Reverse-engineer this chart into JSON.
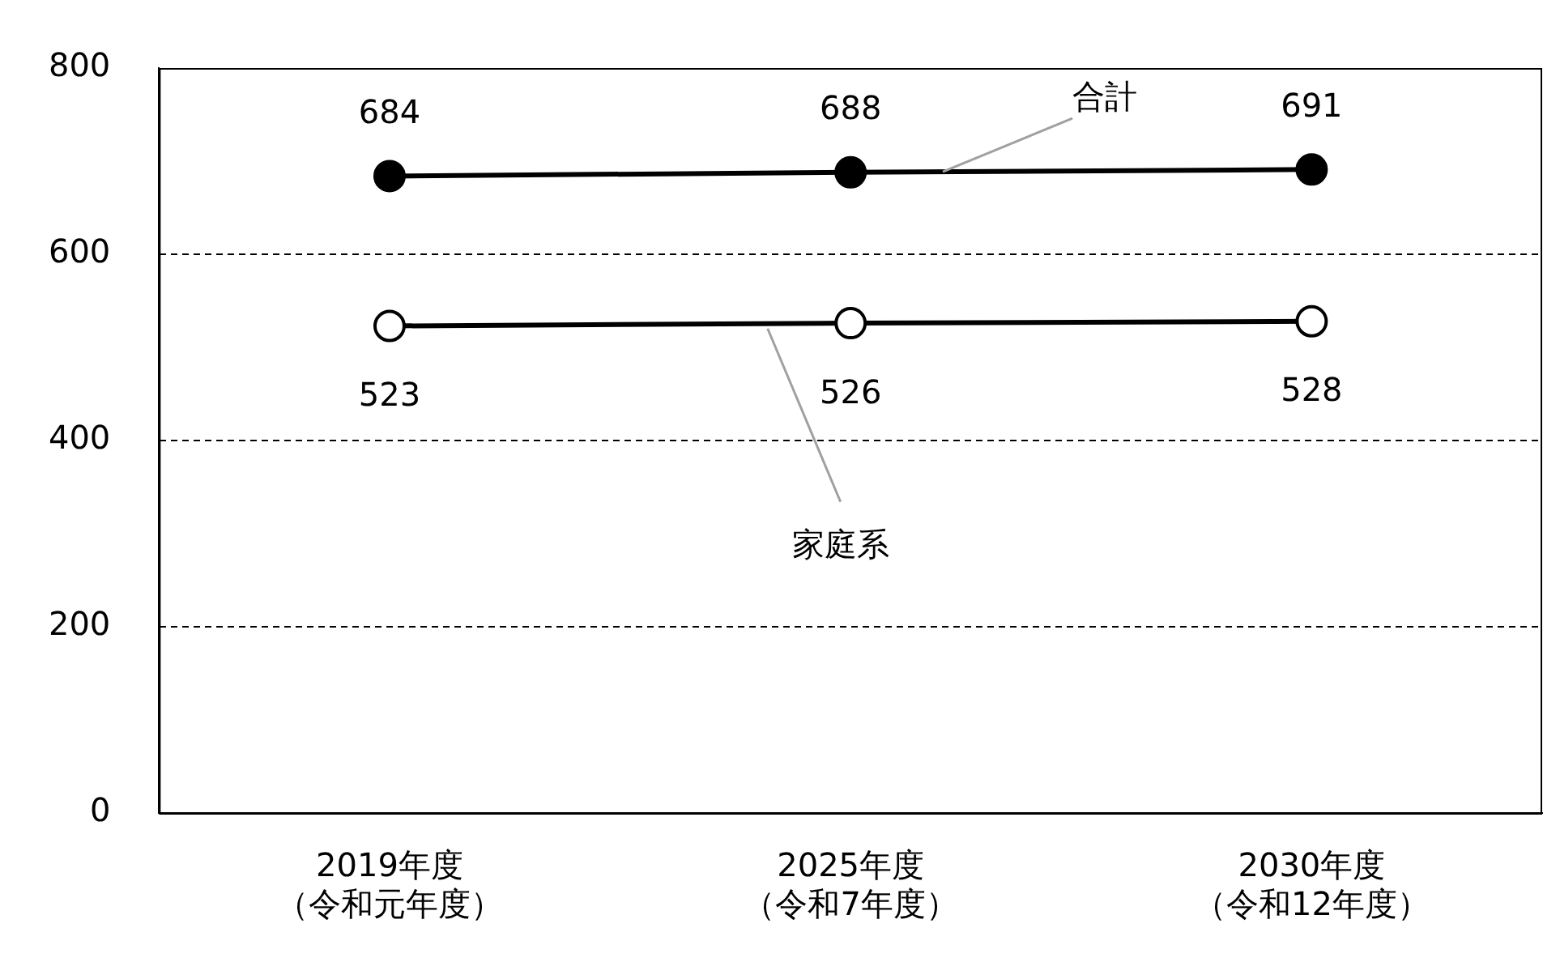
{
  "chart_data": {
    "type": "line",
    "categories": [
      "2019年度（令和元年度）",
      "2025年度（令和7年度）",
      "2030年度（令和12年度）"
    ],
    "series": [
      {
        "name": "合計",
        "color": "#000000",
        "values": [
          684,
          688,
          691
        ]
      },
      {
        "name": "家庭系",
        "color": "#ffffff",
        "values": [
          523,
          526,
          528
        ]
      }
    ],
    "ylim": [
      0,
      800
    ],
    "yticks": [
      0,
      200,
      400,
      600,
      800
    ],
    "grid": "y",
    "legend": false,
    "marker": "circle",
    "line_style": "solid",
    "data_labels": true
  }
}
